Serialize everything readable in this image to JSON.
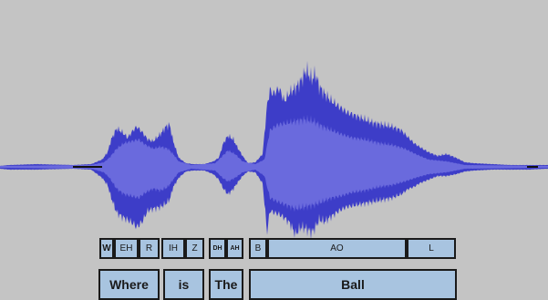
{
  "colors": {
    "background": "#c4c4c4",
    "waveform_outer": "#3d3dc8",
    "waveform_inner": "#6a6add",
    "segment_fill": "#a8c4e0",
    "segment_border": "#1a1a1a"
  },
  "phonemes": [
    {
      "label": "W"
    },
    {
      "label": "EH"
    },
    {
      "label": "R"
    },
    {
      "label": "IH"
    },
    {
      "label": "Z"
    },
    {
      "label": "DH"
    },
    {
      "label": "AH"
    },
    {
      "label": "B"
    },
    {
      "label": "AO"
    },
    {
      "label": "L"
    }
  ],
  "words": [
    {
      "label": "Where"
    },
    {
      "label": "is"
    },
    {
      "label": "The"
    },
    {
      "label": "Ball"
    }
  ]
}
